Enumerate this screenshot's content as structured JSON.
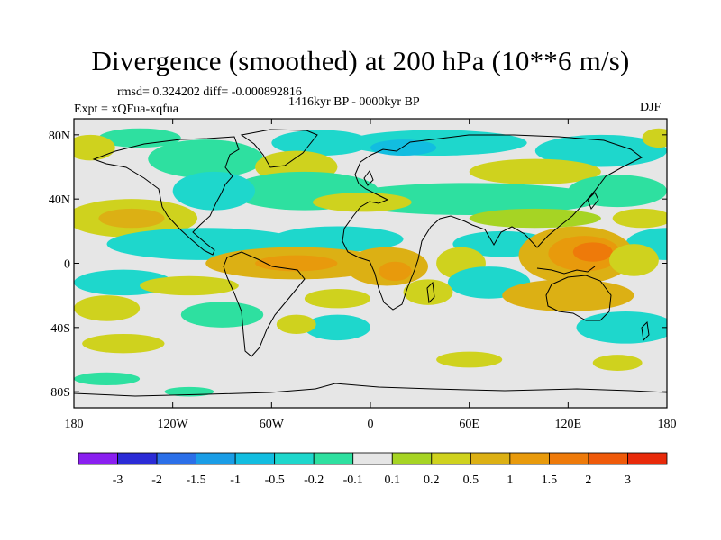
{
  "title": "Divergence (smoothed) at 200 hPa (10**6 m/s)",
  "stats": {
    "rmsd": "rmsd= 0.324202 diff= -0.000892816",
    "expt": "Expt = xQFua-xqfua",
    "period": "1416kyr BP - 0000kyr BP",
    "season": "DJF"
  },
  "axes": {
    "lat_ticks": [
      {
        "label": "80N",
        "value": 80
      },
      {
        "label": "40N",
        "value": 40
      },
      {
        "label": "0",
        "value": 0
      },
      {
        "label": "40S",
        "value": -40
      },
      {
        "label": "80S",
        "value": -80
      }
    ],
    "lon_ticks": [
      {
        "label": "180",
        "value": -180
      },
      {
        "label": "120W",
        "value": -120
      },
      {
        "label": "60W",
        "value": -60
      },
      {
        "label": "0",
        "value": 0
      },
      {
        "label": "60E",
        "value": 60
      },
      {
        "label": "120E",
        "value": 120
      },
      {
        "label": "180",
        "value": 180
      }
    ],
    "lat_range": [
      -90,
      90
    ],
    "lon_range": [
      -180,
      180
    ]
  },
  "colorbar": {
    "colors": [
      "#8a1ff0",
      "#2b2bd6",
      "#2b6fe8",
      "#1a9de6",
      "#12bde0",
      "#1ed7cc",
      "#2ee0a0",
      "#e6e6e6",
      "#a6d424",
      "#cfd21e",
      "#dcb014",
      "#e89a0c",
      "#ee7a0a",
      "#ef5a0a",
      "#e82a0a"
    ],
    "labels": [
      "-3",
      "-2",
      "-1.5",
      "-1",
      "-0.5",
      "-0.2",
      "-0.1",
      "0.1",
      "0.2",
      "0.5",
      "1",
      "1.5",
      "2",
      "3"
    ]
  },
  "regions": [
    {
      "level": 6,
      "lon": -100,
      "lat": 65,
      "rx": 35,
      "ry": 12
    },
    {
      "level": 5,
      "lon": -30,
      "lat": 75,
      "rx": 30,
      "ry": 8
    },
    {
      "level": 5,
      "lon": 40,
      "lat": 75,
      "rx": 55,
      "ry": 8
    },
    {
      "level": 4,
      "lon": 20,
      "lat": 72,
      "rx": 20,
      "ry": 5
    },
    {
      "level": 5,
      "lon": 140,
      "lat": 70,
      "rx": 40,
      "ry": 10
    },
    {
      "level": 6,
      "lon": -140,
      "lat": 78,
      "rx": 25,
      "ry": 6
    },
    {
      "level": 9,
      "lon": -170,
      "lat": 72,
      "rx": 15,
      "ry": 8
    },
    {
      "level": 9,
      "lon": -45,
      "lat": 60,
      "rx": 25,
      "ry": 10
    },
    {
      "level": 9,
      "lon": 100,
      "lat": 57,
      "rx": 40,
      "ry": 8
    },
    {
      "level": 9,
      "lon": 175,
      "lat": 78,
      "rx": 10,
      "ry": 6
    },
    {
      "level": 6,
      "lon": -40,
      "lat": 45,
      "rx": 45,
      "ry": 12
    },
    {
      "level": 5,
      "lon": -95,
      "lat": 45,
      "rx": 25,
      "ry": 12
    },
    {
      "level": 6,
      "lon": 60,
      "lat": 40,
      "rx": 80,
      "ry": 10
    },
    {
      "level": 6,
      "lon": 150,
      "lat": 45,
      "rx": 30,
      "ry": 10
    },
    {
      "level": 9,
      "lon": -145,
      "lat": 28,
      "rx": 40,
      "ry": 12
    },
    {
      "level": 10,
      "lon": -145,
      "lat": 28,
      "rx": 20,
      "ry": 6
    },
    {
      "level": 9,
      "lon": -5,
      "lat": 38,
      "rx": 30,
      "ry": 6
    },
    {
      "level": 8,
      "lon": 100,
      "lat": 28,
      "rx": 40,
      "ry": 6
    },
    {
      "level": 9,
      "lon": 165,
      "lat": 28,
      "rx": 18,
      "ry": 6
    },
    {
      "level": 5,
      "lon": -100,
      "lat": 12,
      "rx": 60,
      "ry": 10
    },
    {
      "level": 5,
      "lon": -20,
      "lat": 15,
      "rx": 40,
      "ry": 8
    },
    {
      "level": 5,
      "lon": 80,
      "lat": 12,
      "rx": 30,
      "ry": 8
    },
    {
      "level": 5,
      "lon": 180,
      "lat": 12,
      "rx": 25,
      "ry": 10
    },
    {
      "level": 10,
      "lon": -45,
      "lat": 0,
      "rx": 55,
      "ry": 10
    },
    {
      "level": 10,
      "lon": 10,
      "lat": -2,
      "rx": 25,
      "ry": 12
    },
    {
      "level": 11,
      "lon": -45,
      "lat": 0,
      "rx": 25,
      "ry": 5
    },
    {
      "level": 11,
      "lon": 15,
      "lat": -5,
      "rx": 10,
      "ry": 6
    },
    {
      "level": 10,
      "lon": 125,
      "lat": 5,
      "rx": 35,
      "ry": 18
    },
    {
      "level": 11,
      "lon": 130,
      "lat": 6,
      "rx": 22,
      "ry": 11
    },
    {
      "level": 12,
      "lon": 135,
      "lat": 7,
      "rx": 12,
      "ry": 6
    },
    {
      "level": 9,
      "lon": 160,
      "lat": 2,
      "rx": 15,
      "ry": 10
    },
    {
      "level": 9,
      "lon": 55,
      "lat": 0,
      "rx": 15,
      "ry": 10
    },
    {
      "level": 5,
      "lon": 72,
      "lat": -12,
      "rx": 25,
      "ry": 10
    },
    {
      "level": 5,
      "lon": -150,
      "lat": -12,
      "rx": 30,
      "ry": 8
    },
    {
      "level": 9,
      "lon": -110,
      "lat": -14,
      "rx": 30,
      "ry": 6
    },
    {
      "level": 9,
      "lon": -160,
      "lat": -28,
      "rx": 20,
      "ry": 8
    },
    {
      "level": 9,
      "lon": -20,
      "lat": -22,
      "rx": 20,
      "ry": 6
    },
    {
      "level": 10,
      "lon": 120,
      "lat": -20,
      "rx": 40,
      "ry": 10
    },
    {
      "level": 9,
      "lon": 35,
      "lat": -18,
      "rx": 15,
      "ry": 8
    },
    {
      "level": 6,
      "lon": -90,
      "lat": -32,
      "rx": 25,
      "ry": 8
    },
    {
      "level": 5,
      "lon": 155,
      "lat": -40,
      "rx": 30,
      "ry": 10
    },
    {
      "level": 5,
      "lon": -20,
      "lat": -40,
      "rx": 20,
      "ry": 8
    },
    {
      "level": 9,
      "lon": -150,
      "lat": -50,
      "rx": 25,
      "ry": 6
    },
    {
      "level": 9,
      "lon": -45,
      "lat": -38,
      "rx": 12,
      "ry": 6
    },
    {
      "level": 6,
      "lon": -160,
      "lat": -72,
      "rx": 20,
      "ry": 4
    },
    {
      "level": 9,
      "lon": 60,
      "lat": -60,
      "rx": 20,
      "ry": 5
    },
    {
      "level": 9,
      "lon": 150,
      "lat": -62,
      "rx": 15,
      "ry": 5
    },
    {
      "level": 6,
      "lon": -110,
      "lat": -80,
      "rx": 15,
      "ry": 3
    }
  ]
}
